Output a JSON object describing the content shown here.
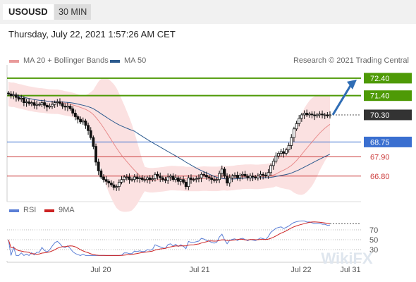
{
  "header": {
    "symbol": "USOUSD",
    "timeframe": "30 MIN",
    "timestamp": "Thursday, July 22, 2021 1:57:26 AM CET"
  },
  "legend": {
    "items": [
      {
        "label": "MA 20 + Bollinger Bands",
        "color": "#e99a9a"
      },
      {
        "label": "MA 50",
        "color": "#2c5a8e"
      }
    ],
    "credit": "Research © 2021 Trading Central"
  },
  "rsi_legend": {
    "items": [
      {
        "label": "RSI",
        "color": "#5b7fd6"
      },
      {
        "label": "9MA",
        "color": "#cc2222"
      }
    ]
  },
  "watermark": "WikiFX",
  "colors": {
    "green": "#4e9a06",
    "blue": "#3a6fd0",
    "red": "#cc3b3b",
    "arrow": "#2f6db5",
    "dark": "#333333"
  },
  "chart_data": [
    {
      "type": "candlestick",
      "x_tick_labels": [
        "Jul 20",
        "Jul 21",
        "Jul 22",
        "Jul 31"
      ],
      "ylim": [
        65.5,
        73.0
      ],
      "price_levels": [
        {
          "value": 72.4,
          "label": "72.40",
          "kind": "resistance"
        },
        {
          "value": 71.4,
          "label": "71.40",
          "kind": "resistance"
        },
        {
          "value": 70.3,
          "label": "70.30",
          "kind": "last"
        },
        {
          "value": 68.75,
          "label": "68.75",
          "kind": "pivot"
        },
        {
          "value": 67.9,
          "label": "67.90",
          "kind": "support"
        },
        {
          "value": 66.8,
          "label": "66.80",
          "kind": "support"
        }
      ],
      "close": [
        71.5,
        71.4,
        71.45,
        71.3,
        71.2,
        71.25,
        71.0,
        71.05,
        70.95,
        71.0,
        70.85,
        70.9,
        70.9,
        71.0,
        70.85,
        70.75,
        70.8,
        70.9,
        71.0,
        71.05,
        70.95,
        70.8,
        70.75,
        70.8,
        70.65,
        70.4,
        70.2,
        70.05,
        69.9,
        69.95,
        69.7,
        69.4,
        69.0,
        68.5,
        67.6,
        67.1,
        66.75,
        66.6,
        66.5,
        66.4,
        66.3,
        66.15,
        66.2,
        66.45,
        66.6,
        66.75,
        66.75,
        66.6,
        66.6,
        66.75,
        66.65,
        66.7,
        66.6,
        66.6,
        66.7,
        66.6,
        66.65,
        66.9,
        66.8,
        66.7,
        66.6,
        66.55,
        66.75,
        66.8,
        66.6,
        66.7,
        66.5,
        66.6,
        66.45,
        66.2,
        66.7,
        66.6,
        66.6,
        66.65,
        66.7,
        66.9,
        66.85,
        66.75,
        66.7,
        66.6,
        66.55,
        66.6,
        66.95,
        67.2,
        66.8,
        66.4,
        66.7,
        66.8,
        66.85,
        66.7,
        66.85,
        66.9,
        66.8,
        66.7,
        66.8,
        66.75,
        66.7,
        66.8,
        66.9,
        66.85,
        66.8,
        67.0,
        67.4,
        67.65,
        67.95,
        68.1,
        68.2,
        68.1,
        68.3,
        68.55,
        69.0,
        69.5,
        69.8,
        70.1,
        70.3,
        70.4,
        70.3,
        70.35,
        70.3,
        70.25,
        70.3,
        70.35,
        70.3,
        70.3,
        70.25,
        70.3
      ],
      "ma20_end": 69.8,
      "ma50_end": 68.4,
      "forecast": {
        "from": 70.3,
        "to": 72.4
      }
    },
    {
      "type": "line",
      "name": "RSI",
      "y_tick_labels": [
        "70",
        "50",
        "30"
      ],
      "levels": [
        70,
        50,
        30
      ],
      "ylim": [
        10,
        90
      ],
      "series": [
        {
          "name": "RSI"
        },
        {
          "name": "9MA"
        }
      ]
    }
  ]
}
